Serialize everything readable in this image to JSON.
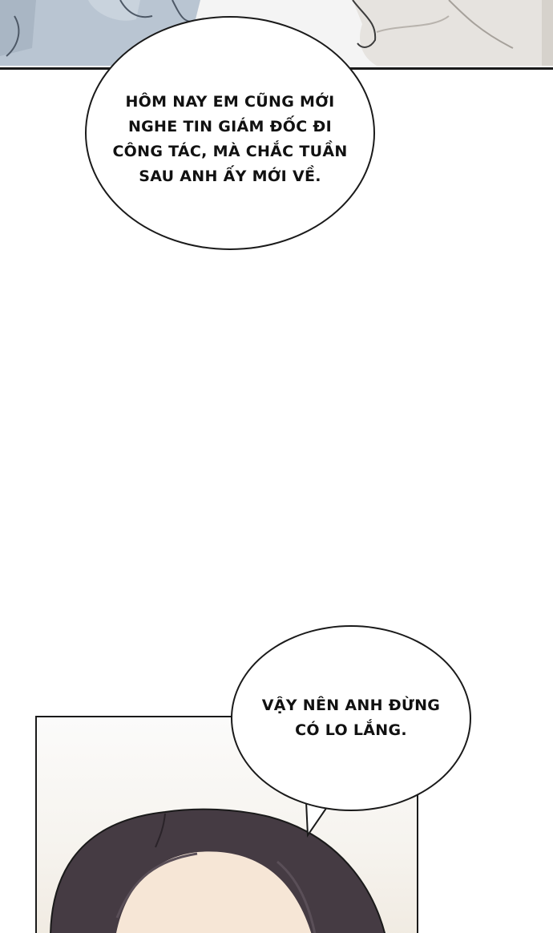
{
  "panels": {
    "top": {
      "description_hidden": true
    },
    "bottom": {
      "description_hidden": true
    }
  },
  "bubbles": [
    {
      "lines": [
        "HÔM NAY EM CŨNG MỚI",
        "NGHE TIN GIÁM ĐỐC ĐI",
        "CÔNG TÁC, MÀ CHẮC TUẦN",
        "SAU ANH ẤY MỚI VỀ."
      ]
    },
    {
      "lines": [
        "VẬY NÊN ANH ĐỪNG",
        "CÓ LO LẮNG."
      ]
    }
  ],
  "colors": {
    "ink": "#1a1a1a",
    "shirt_blue": "#b7c3d0",
    "hair": "#463c44"
  }
}
